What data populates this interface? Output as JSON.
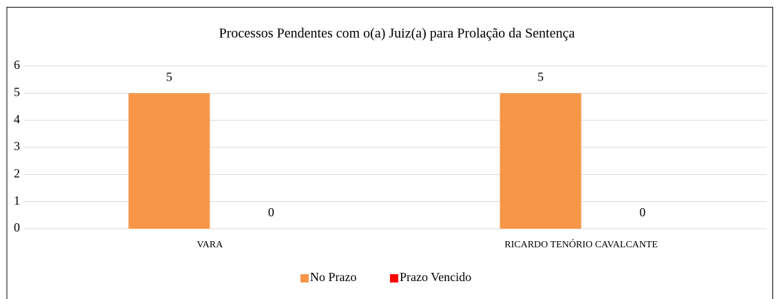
{
  "chart_data": {
    "type": "bar",
    "title": "Processos Pendentes com o(a) Juiz(a) para Prolação da Sentença",
    "categories": [
      "VARA",
      "RICARDO TENÓRIO CAVALCANTE"
    ],
    "series": [
      {
        "name": "No Prazo",
        "color": "#f79646",
        "values": [
          5,
          5
        ]
      },
      {
        "name": "Prazo Vencido",
        "color": "#ff0000",
        "values": [
          0,
          0
        ]
      }
    ],
    "ylim": [
      0,
      6
    ],
    "yticks": [
      0,
      1,
      2,
      3,
      4,
      5,
      6
    ],
    "grid": true,
    "legend": "bottom"
  }
}
